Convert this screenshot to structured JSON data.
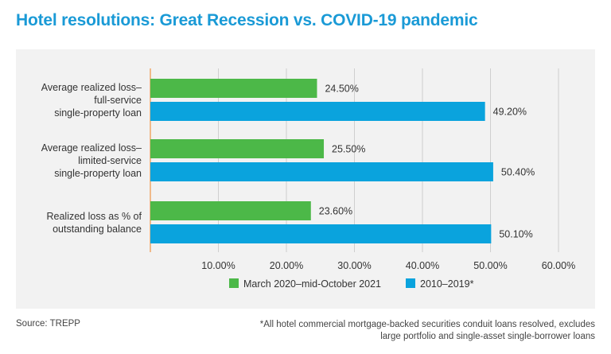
{
  "title": "Hotel resolutions: Great Recession vs. COVID-19 pandemic",
  "source": "Source: TREPP",
  "footnote": "*All hotel commercial mortgage-backed securities conduit loans resolved, excludes large portfolio and single-asset single-borrower loans",
  "colors": {
    "title": "#1a9ad6",
    "series_green": "#4cb848",
    "series_blue": "#0aa3dd",
    "axis": "#f0a868",
    "grid": "#cfcfcf"
  },
  "chart_data": {
    "type": "bar",
    "orientation": "horizontal",
    "categories": [
      [
        "Average realized loss–",
        "full-service",
        "single-property loan"
      ],
      [
        "Average realized loss–",
        "limited-service",
        "single-property loan"
      ],
      [
        "Realized loss as % of",
        "outstanding balance"
      ]
    ],
    "series": [
      {
        "name": "March 2020–mid-October 2021",
        "values": [
          24.5,
          25.5,
          23.6
        ],
        "labels": [
          "24.50%",
          "25.50%",
          "23.60%"
        ],
        "color": "#4cb848"
      },
      {
        "name": "2010–2019*",
        "values": [
          49.2,
          50.4,
          50.1
        ],
        "labels": [
          "49.20%",
          "50.40%",
          "50.10%"
        ],
        "color": "#0aa3dd"
      }
    ],
    "xlim": [
      0,
      60
    ],
    "xticks": [
      10,
      20,
      30,
      40,
      50,
      60
    ],
    "xtick_labels": [
      "10.00%",
      "20.00%",
      "30.00%",
      "40.00%",
      "50.00%",
      "60.00%"
    ],
    "grid": true,
    "legend": "bottom-center"
  }
}
